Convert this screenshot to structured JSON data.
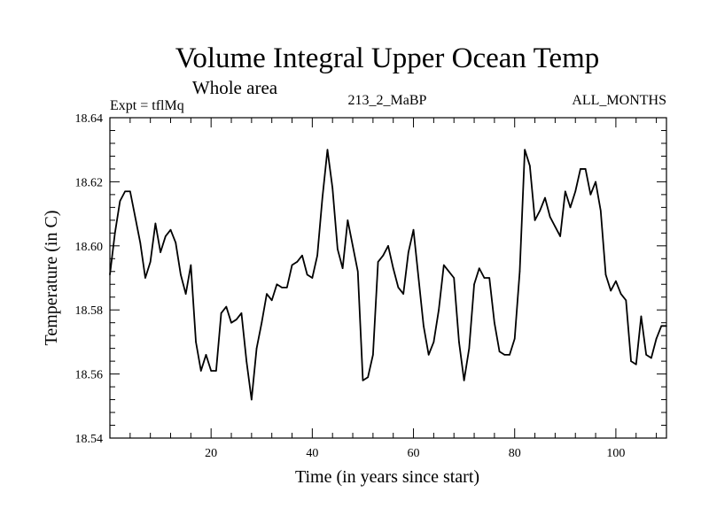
{
  "chart_data": {
    "type": "line",
    "title": "Volume Integral Upper Ocean Temp",
    "subtitle": "Whole area",
    "experiment_label": "Expt = tflMq",
    "run_label": "213_2_MaBP",
    "period_label": "ALL_MONTHS",
    "xlabel": "Time (in years since start)",
    "ylabel": "Temperature (in C)",
    "xlim": [
      0,
      110
    ],
    "ylim": [
      18.54,
      18.64
    ],
    "x_ticks": [
      20,
      40,
      60,
      80,
      100
    ],
    "x_tick_labels": [
      "20",
      "40",
      "60",
      "80",
      "100"
    ],
    "y_ticks": [
      18.54,
      18.56,
      18.58,
      18.6,
      18.62,
      18.64
    ],
    "y_tick_labels": [
      "18.54",
      "18.56",
      "18.58",
      "18.60",
      "18.62",
      "18.64"
    ],
    "grid": false,
    "series": [
      {
        "name": "Temperature",
        "x": [
          0,
          1,
          2,
          3,
          4,
          5,
          6,
          7,
          8,
          9,
          10,
          11,
          12,
          13,
          14,
          15,
          16,
          17,
          18,
          19,
          20,
          21,
          22,
          23,
          24,
          25,
          26,
          27,
          28,
          29,
          30,
          31,
          32,
          33,
          34,
          35,
          36,
          37,
          38,
          39,
          40,
          41,
          42,
          43,
          44,
          45,
          46,
          47,
          48,
          49,
          50,
          51,
          52,
          53,
          54,
          55,
          56,
          57,
          58,
          59,
          60,
          61,
          62,
          63,
          64,
          65,
          66,
          67,
          68,
          69,
          70,
          71,
          72,
          73,
          74,
          75,
          76,
          77,
          78,
          79,
          80,
          81,
          82,
          83,
          84,
          85,
          86,
          87,
          88,
          89,
          90,
          91,
          92,
          93,
          94,
          95,
          96,
          97,
          98,
          99,
          100,
          101,
          102,
          103,
          104,
          105,
          106,
          107,
          108,
          109,
          110
        ],
        "values": [
          18.591,
          18.604,
          18.614,
          18.617,
          18.617,
          18.609,
          18.601,
          18.59,
          18.595,
          18.607,
          18.598,
          18.603,
          18.605,
          18.601,
          18.591,
          18.585,
          18.594,
          18.57,
          18.561,
          18.566,
          18.561,
          18.561,
          18.579,
          18.581,
          18.576,
          18.577,
          18.579,
          18.564,
          18.552,
          18.568,
          18.576,
          18.585,
          18.583,
          18.588,
          18.587,
          18.587,
          18.594,
          18.595,
          18.597,
          18.591,
          18.59,
          18.597,
          18.615,
          18.63,
          18.618,
          18.599,
          18.593,
          18.608,
          18.6,
          18.592,
          18.558,
          18.559,
          18.566,
          18.595,
          18.597,
          18.6,
          18.593,
          18.587,
          18.585,
          18.598,
          18.605,
          18.59,
          18.575,
          18.566,
          18.57,
          18.58,
          18.594,
          18.592,
          18.59,
          18.57,
          18.558,
          18.568,
          18.588,
          18.593,
          18.59,
          18.59,
          18.576,
          18.567,
          18.566,
          18.566,
          18.571,
          18.592,
          18.63,
          18.625,
          18.608,
          18.611,
          18.615,
          18.609,
          18.606,
          18.603,
          18.617,
          18.612,
          18.617,
          18.624,
          18.624,
          18.616,
          18.62,
          18.611,
          18.591,
          18.586,
          18.589,
          18.585,
          18.583,
          18.564,
          18.563,
          18.578,
          18.566,
          18.565,
          18.571,
          18.575,
          18.575
        ]
      }
    ]
  }
}
